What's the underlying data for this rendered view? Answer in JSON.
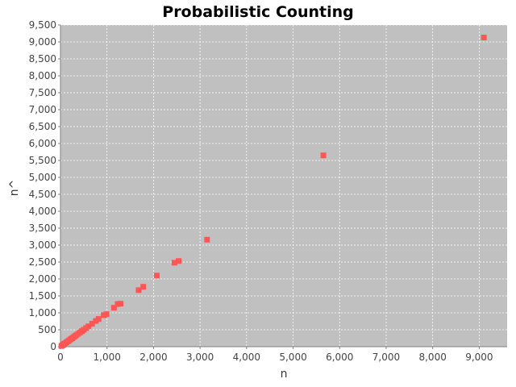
{
  "chart_data": {
    "type": "scatter",
    "title": "Probabilistic Counting",
    "xlabel": "n",
    "ylabel": "n^",
    "xlim": [
      0,
      9600
    ],
    "ylim": [
      0,
      9500
    ],
    "xticks": [
      0,
      1000,
      2000,
      3000,
      4000,
      5000,
      6000,
      7000,
      8000,
      9000
    ],
    "yticks": [
      0,
      500,
      1000,
      1500,
      2000,
      2500,
      3000,
      3500,
      4000,
      4500,
      5000,
      5500,
      6000,
      6500,
      7000,
      7500,
      8000,
      8500,
      9000,
      9500
    ],
    "xtick_labels": [
      "0",
      "1,000",
      "2,000",
      "3,000",
      "4,000",
      "5,000",
      "6,000",
      "7,000",
      "8,000",
      "9,000"
    ],
    "ytick_labels": [
      "0",
      "500",
      "1,000",
      "1,500",
      "2,000",
      "2,500",
      "3,000",
      "3,500",
      "4,000",
      "4,500",
      "5,000",
      "5,500",
      "6,000",
      "6,500",
      "7,000",
      "7,500",
      "8,000",
      "8,500",
      "9,000",
      "9,500"
    ],
    "grid": true,
    "legend": "none",
    "colors": {
      "plot_background": "#c0c0c0",
      "grid": "#ffffff",
      "marker": "#ff5555",
      "axis": "#808080"
    },
    "series": [
      {
        "points": [
          {
            "x": 20,
            "y": 20
          },
          {
            "x": 40,
            "y": 40
          },
          {
            "x": 60,
            "y": 60
          },
          {
            "x": 80,
            "y": 80
          },
          {
            "x": 100,
            "y": 100
          },
          {
            "x": 130,
            "y": 130
          },
          {
            "x": 160,
            "y": 160
          },
          {
            "x": 190,
            "y": 190
          },
          {
            "x": 220,
            "y": 220
          },
          {
            "x": 250,
            "y": 250
          },
          {
            "x": 280,
            "y": 280
          },
          {
            "x": 310,
            "y": 310
          },
          {
            "x": 340,
            "y": 340
          },
          {
            "x": 380,
            "y": 380
          },
          {
            "x": 420,
            "y": 420
          },
          {
            "x": 460,
            "y": 460
          },
          {
            "x": 500,
            "y": 500
          },
          {
            "x": 550,
            "y": 550
          },
          {
            "x": 600,
            "y": 600
          },
          {
            "x": 680,
            "y": 680
          },
          {
            "x": 760,
            "y": 760
          },
          {
            "x": 820,
            "y": 820
          },
          {
            "x": 930,
            "y": 930
          },
          {
            "x": 990,
            "y": 960
          },
          {
            "x": 1150,
            "y": 1150
          },
          {
            "x": 1230,
            "y": 1260
          },
          {
            "x": 1290,
            "y": 1270
          },
          {
            "x": 1680,
            "y": 1670
          },
          {
            "x": 1780,
            "y": 1770
          },
          {
            "x": 2070,
            "y": 2100
          },
          {
            "x": 2450,
            "y": 2480
          },
          {
            "x": 2540,
            "y": 2530
          },
          {
            "x": 3150,
            "y": 3160
          },
          {
            "x": 5650,
            "y": 5650
          },
          {
            "x": 9100,
            "y": 9130
          }
        ]
      }
    ]
  }
}
